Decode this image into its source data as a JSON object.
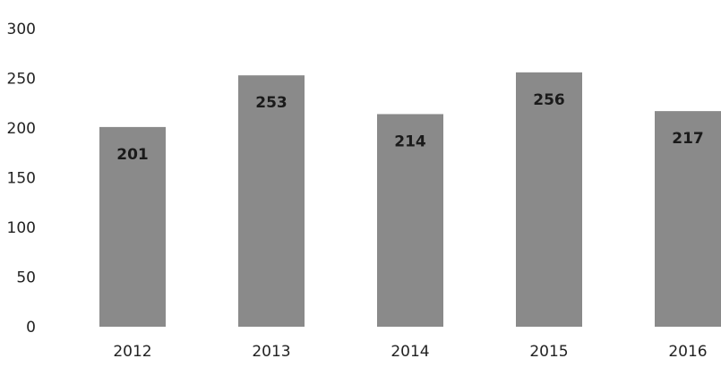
{
  "chart_data": {
    "type": "bar",
    "categories": [
      "2012",
      "2013",
      "2014",
      "2015",
      "2016"
    ],
    "values": [
      201,
      253,
      214,
      256,
      217
    ],
    "data_labels": [
      "201",
      "253",
      "214",
      "256",
      "217"
    ],
    "yticks": [
      "0",
      "50",
      "100",
      "150",
      "200",
      "250",
      "300"
    ],
    "ylim": [
      0,
      300
    ],
    "grid": false,
    "legend": "none",
    "bar_color": "#8a8a8a"
  }
}
